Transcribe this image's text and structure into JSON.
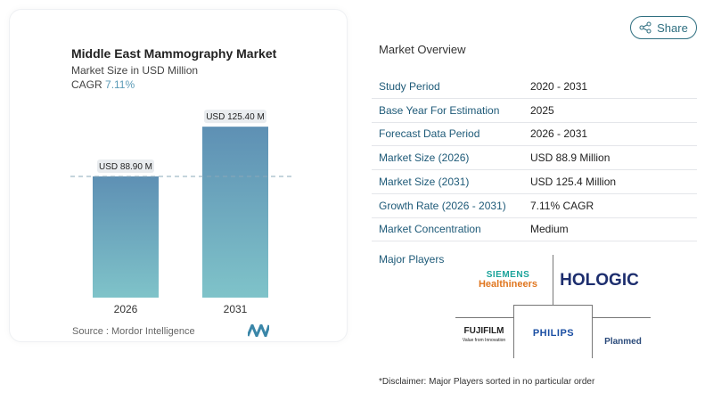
{
  "share_label": "Share",
  "chart_data": {
    "type": "bar",
    "title": "Middle East Mammography Market",
    "subtitle": "Market Size in USD Million",
    "cagr_label": "CAGR",
    "cagr_value": "7.11%",
    "categories": [
      "2026",
      "2031"
    ],
    "values": [
      88.9,
      125.4
    ],
    "data_labels": [
      "USD 88.90 M",
      "USD 125.40 M"
    ],
    "reference_line": "dashed at 2026 value",
    "colors": {
      "bar_top": "#5e90b4",
      "bar_bottom": "#7fc3c9",
      "cagr": "#5b9bb7"
    },
    "source": "Source :  Mordor Intelligence"
  },
  "overview": {
    "title": "Market Overview",
    "rows": [
      {
        "key": "Study Period",
        "value": "2020 - 2031"
      },
      {
        "key": "Base Year For Estimation",
        "value": "2025"
      },
      {
        "key": "Forecast Data Period",
        "value": "2026 - 2031"
      },
      {
        "key": "Market Size (2026)",
        "value": "USD 88.9 Million"
      },
      {
        "key": "Market Size (2031)",
        "value": "USD 125.4 Million"
      },
      {
        "key": "Growth Rate (2026 - 2031)",
        "value": "7.11% CAGR"
      },
      {
        "key": "Market Concentration",
        "value": "Medium"
      }
    ],
    "major_players_label": "Major Players",
    "players": [
      "SIEMENS Healthineers",
      "HOLOGIC",
      "FUJIFILM",
      "PHILIPS",
      "Planmed"
    ],
    "fujifilm_tagline": "Value from Innovation",
    "disclaimer": "*Disclaimer: Major Players sorted in no particular order"
  }
}
